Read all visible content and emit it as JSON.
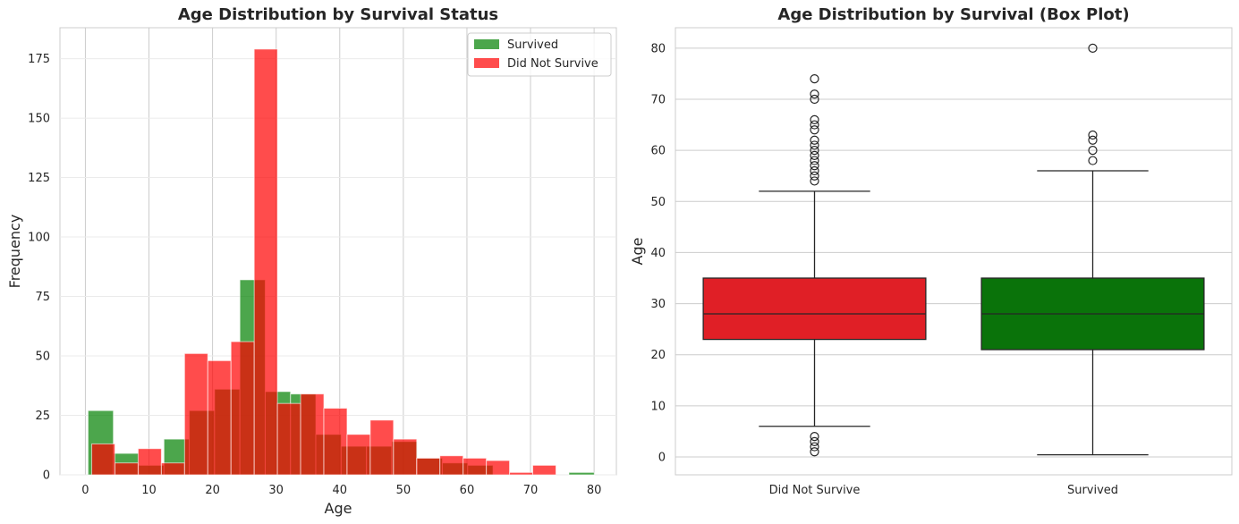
{
  "chart_data": [
    {
      "type": "bar",
      "subtype": "overlaid-histogram",
      "title": "Age Distribution by Survival Status",
      "xlabel": "Age",
      "ylabel": "Frequency",
      "xlim": [
        -4,
        83.5
      ],
      "ylim": [
        0,
        188
      ],
      "xticks": [
        0,
        10,
        20,
        30,
        40,
        50,
        60,
        70,
        80
      ],
      "yticks": [
        0,
        25,
        50,
        75,
        100,
        125,
        150,
        175
      ],
      "grid": true,
      "legend": "top-right",
      "series": [
        {
          "name": "Survived",
          "color": "#008000",
          "opacity": 0.7,
          "bin_start": 0.42,
          "bin_width": 3.98,
          "values": [
            27,
            9,
            4,
            15,
            27,
            36,
            82,
            35,
            34,
            17,
            12,
            12,
            14,
            7,
            5,
            4,
            0,
            0,
            0,
            1
          ]
        },
        {
          "name": "Did Not Survive",
          "color": "#ff0000",
          "opacity": 0.7,
          "bin_start": 1.0,
          "bin_width": 3.65,
          "values": [
            13,
            5,
            11,
            5,
            51,
            48,
            56,
            179,
            30,
            34,
            28,
            17,
            23,
            15,
            7,
            8,
            7,
            6,
            1,
            4
          ]
        }
      ]
    },
    {
      "type": "box",
      "title": "Age Distribution by Survival (Box Plot)",
      "xlabel": "",
      "ylabel": "Age",
      "ylim": [
        -3.5,
        84
      ],
      "yticks": [
        0,
        10,
        20,
        30,
        40,
        50,
        60,
        70,
        80
      ],
      "grid": true,
      "categories": [
        "Did Not Survive",
        "Survived"
      ],
      "boxes": [
        {
          "category": "Did Not Survive",
          "color": "#e01f26",
          "q1": 23,
          "median": 28,
          "q3": 35,
          "whisker_low": 6,
          "whisker_high": 52,
          "outliers": [
            1,
            2,
            3,
            4,
            54,
            55,
            56,
            57,
            58,
            59,
            60,
            61,
            62,
            64,
            65,
            66,
            70,
            71,
            74
          ]
        },
        {
          "category": "Survived",
          "color": "#0a730a",
          "q1": 21,
          "median": 28,
          "q3": 35,
          "whisker_low": 0.42,
          "whisker_high": 56,
          "outliers": [
            58,
            60,
            62,
            63,
            80
          ]
        }
      ]
    }
  ]
}
